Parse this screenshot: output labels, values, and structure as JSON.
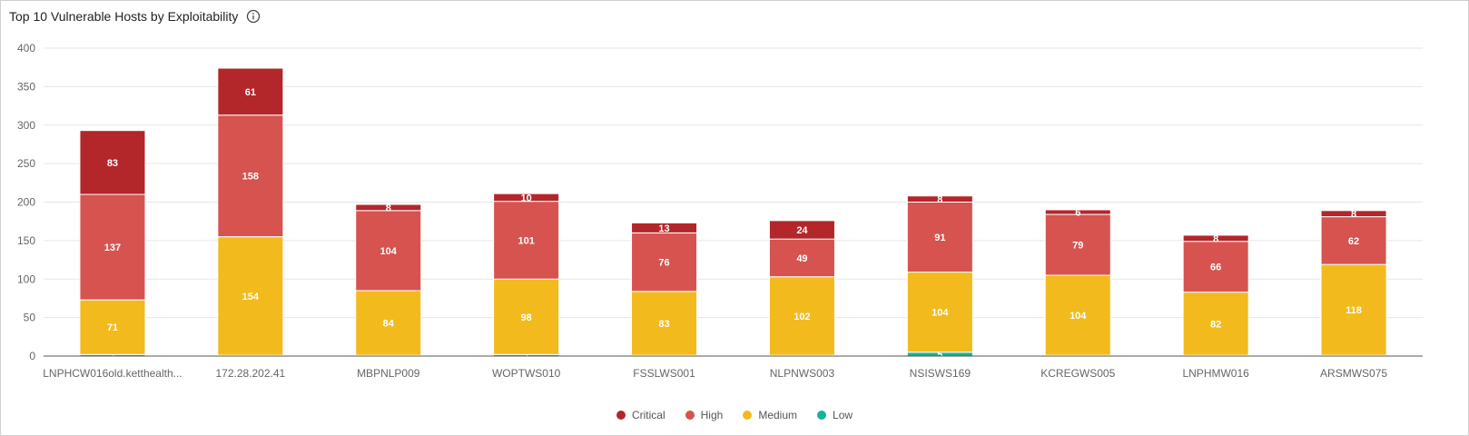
{
  "header": {
    "title": "Top 10 Vulnerable Hosts by Exploitability",
    "info_icon": "info-icon"
  },
  "colors": {
    "Critical": "#b3262a",
    "High": "#d65350",
    "Medium": "#f2ba1d",
    "Low": "#16b29a"
  },
  "chart_data": {
    "type": "bar",
    "stacked": true,
    "title": "Top 10 Vulnerable Hosts by Exploitability",
    "xlabel": "",
    "ylabel": "",
    "ylim": [
      0,
      400
    ],
    "yticks": [
      0,
      50,
      100,
      150,
      200,
      250,
      300,
      350,
      400
    ],
    "grid": true,
    "legend_position": "bottom",
    "categories": [
      "LNPHCW016old.ketthealth...",
      "172.28.202.41",
      "MBPNLP009",
      "WOPTWS010",
      "FSSLWS001",
      "NLPNWS003",
      "NSISWS169",
      "KCREGWS005",
      "LNPHMW016",
      "ARSMWS075"
    ],
    "series": [
      {
        "name": "Low",
        "values": [
          2,
          1,
          1,
          2,
          1,
          1,
          5,
          1,
          1,
          1
        ]
      },
      {
        "name": "Medium",
        "values": [
          71,
          154,
          84,
          98,
          83,
          102,
          104,
          104,
          82,
          118
        ]
      },
      {
        "name": "High",
        "values": [
          137,
          158,
          104,
          101,
          76,
          49,
          91,
          79,
          66,
          62
        ]
      },
      {
        "name": "Critical",
        "values": [
          83,
          61,
          8,
          10,
          13,
          24,
          8,
          6,
          8,
          8
        ]
      }
    ],
    "legend": [
      "Critical",
      "High",
      "Medium",
      "Low"
    ]
  }
}
